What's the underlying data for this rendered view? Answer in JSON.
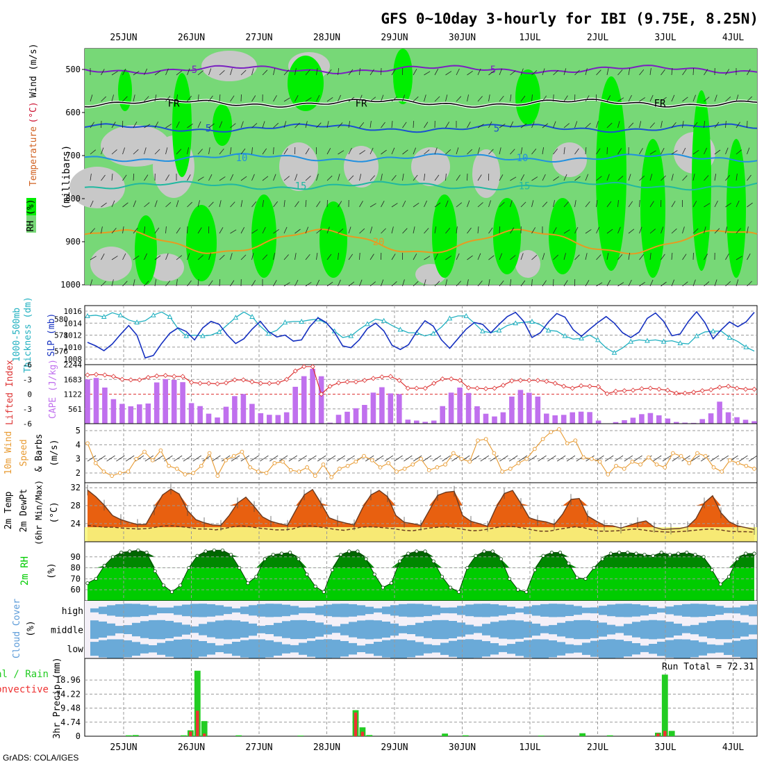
{
  "title": "GFS 0~10day 3-hourly for IBI (9.75E, 8.25N)",
  "credit": "GrADS: COLA/IGES",
  "date_ticks": [
    "25JUN",
    "26JUN",
    "27JUN",
    "28JUN",
    "29JUN",
    "30JUN",
    "1JUL",
    "2JUL",
    "3JUL",
    "4JUL"
  ],
  "colors": {
    "rh_dark": "#00ee00",
    "rh_mid": "#77d877",
    "rh_grey": "#c8c8c8",
    "slp": "#1530c0",
    "thick": "#20b0c0",
    "lifted": "#dd3333",
    "cape": "#c070ee",
    "wind": "#e89a30",
    "temp_dark": "#e86010",
    "temp_light": "#f4a840",
    "dewpt_fill": "#f8f880",
    "rh2_dark": "#008800",
    "rh2_light": "#00cc00",
    "cloud": "#6aaad8",
    "cloud_bg": "#f4f0f8",
    "precip_total": "#22cc22",
    "precip_conv": "#ee3333"
  },
  "chart_data": [
    {
      "type": "heatmap",
      "panel": "upper-air",
      "ylabel": "(millibars)",
      "legend_labels": [
        "RH (%)",
        "Temperature",
        "(°C)",
        "Wind",
        "(m/s)"
      ],
      "y_ticks": [
        500,
        600,
        700,
        800,
        900,
        1000
      ],
      "contours": [
        {
          "label": "5",
          "text_labels": [
            "5",
            "5"
          ],
          "color": "#7a20c0",
          "level_mb": 500
        },
        {
          "label": "FR",
          "text_labels": [
            "FR",
            "FR",
            "FR"
          ],
          "color": "#000000",
          "level_mb": 578
        },
        {
          "label": "5",
          "text_labels": [
            "5",
            "5"
          ],
          "color": "#1a50d0",
          "level_mb": 636
        },
        {
          "label": "10",
          "text_labels": [
            "10",
            "10"
          ],
          "color": "#2090e0",
          "level_mb": 705
        },
        {
          "label": "15",
          "text_labels": [
            "15",
            "15"
          ],
          "color": "#20b8a0",
          "level_mb": 770
        },
        {
          "label": "20",
          "text_labels": [
            "20"
          ],
          "color": "#e89a20",
          "level_mb": 900
        }
      ]
    },
    {
      "type": "line",
      "panel": "slp-thickness",
      "ylabel_left": [
        "1000-500mb",
        "Thickness (dm)"
      ],
      "ylabel_right": "SLP (mb)",
      "yticks_left": [
        576,
        578,
        580
      ],
      "yticks_right": [
        1008,
        1010,
        1012,
        1014,
        1016
      ],
      "series": [
        {
          "name": "SLP (mb)",
          "values": [
            1010.8,
            1010.2,
            1009.4,
            1010.5,
            1012.1,
            1013.6,
            1012.0,
            1008.2,
            1008.6,
            1010.6,
            1012.3,
            1013.2,
            1012.6,
            1011.2,
            1013.2,
            1014.3,
            1013.8,
            1012.0,
            1010.6,
            1011.4,
            1013.0,
            1014.3,
            1012.6,
            1011.7,
            1012.0,
            1011.0,
            1011.2,
            1013.4,
            1014.9,
            1014.1,
            1012.5,
            1010.2,
            1009.9,
            1011.2,
            1013.1,
            1014.0,
            1012.7,
            1010.3,
            1009.6,
            1010.4,
            1012.6,
            1014.4,
            1013.5,
            1011.2,
            1009.8,
            1011.4,
            1013.0,
            1014.1,
            1013.8,
            1012.4,
            1013.8,
            1015.1,
            1015.8,
            1014.3,
            1011.6,
            1012.4,
            1014.2,
            1015.6,
            1015.0,
            1012.9,
            1011.8,
            1013.0,
            1014.1,
            1015.1,
            1014.0,
            1012.4,
            1011.6,
            1012.5,
            1014.8,
            1015.7,
            1014.3,
            1011.9,
            1012.2,
            1014.3,
            1015.9,
            1014.1,
            1011.4,
            1012.9,
            1014.2,
            1013.4,
            1014.2,
            1015.8
          ]
        },
        {
          "name": "Thickness (dm)",
          "values": [
            580.4,
            580.5,
            580.3,
            580.8,
            580.5,
            579.9,
            579.6,
            579.8,
            580.5,
            580.9,
            580.3,
            578.8,
            577.9,
            578.0,
            577.9,
            578.0,
            578.4,
            579.3,
            580.2,
            580.9,
            580.3,
            579.1,
            578.2,
            578.6,
            579.6,
            579.7,
            579.7,
            579.9,
            580.0,
            579.5,
            578.5,
            577.7,
            577.9,
            578.7,
            579.4,
            580.0,
            579.8,
            579.2,
            578.7,
            578.3,
            578.3,
            577.9,
            578.2,
            579.0,
            580.1,
            580.4,
            580.4,
            579.5,
            578.5,
            578.3,
            578.6,
            579.2,
            579.5,
            579.6,
            579.7,
            579.3,
            578.6,
            578.5,
            577.9,
            577.5,
            577.6,
            578.0,
            577.4,
            576.4,
            575.8,
            576.4,
            577.2,
            577.4,
            577.3,
            577.4,
            577.2,
            577.3,
            577.0,
            576.9,
            577.9,
            578.4,
            578.5,
            578.5,
            577.7,
            577.2,
            576.5,
            576.0
          ]
        }
      ]
    },
    {
      "type": "bar",
      "panel": "lifted-cape",
      "ylabel_left": "Lifted Index",
      "ylabel_right": "CAPE (J/kg)",
      "yticks_left": [
        -6,
        -3,
        0,
        3,
        6
      ],
      "yticks_right": [
        561,
        1122,
        1683,
        2244
      ],
      "series": [
        {
          "name": "CAPE (J/kg)",
          "values": [
            1683,
            1737,
            1374,
            932,
            752,
            661,
            734,
            765,
            1569,
            1693,
            1667,
            1579,
            781,
            669,
            379,
            234,
            645,
            1048,
            1126,
            753,
            398,
            337,
            329,
            434,
            1403,
            1807,
            2085,
            1804,
            36,
            339,
            455,
            586,
            712,
            1179,
            1386,
            1151,
            1125,
            153,
            118,
            72,
            118,
            668,
            1179,
            1374,
            1166,
            663,
            378,
            274,
            432,
            1029,
            1284,
            1176,
            1029,
            384,
            317,
            335,
            433,
            456,
            440,
            120,
            5,
            60,
            132,
            227,
            361,
            405,
            318,
            196,
            65,
            39,
            28,
            175,
            394,
            838,
            432,
            246,
            149,
            95
          ],
          "color": "#c070ee"
        },
        {
          "name": "Lifted Index",
          "values": [
            -3.9,
            -4.0,
            -3.9,
            -3.6,
            -3.0,
            -2.9,
            -2.9,
            -3.4,
            -3.7,
            -3.8,
            -3.6,
            -3.6,
            -2.4,
            -2.2,
            -2.2,
            -2.1,
            -2.3,
            -2.9,
            -2.9,
            -2.5,
            -2.2,
            -2.2,
            -2.3,
            -3.0,
            -4.7,
            -5.6,
            -5.6,
            0.0,
            -1.6,
            -2.3,
            -2.5,
            -2.5,
            -2.8,
            -3.2,
            -3.5,
            -3.6,
            -2.8,
            -1.2,
            -1.2,
            -1.2,
            -2.2,
            -3.1,
            -3.1,
            -2.8,
            -1.3,
            -1.2,
            -1.1,
            -1.2,
            -1.8,
            -2.7,
            -2.8,
            -2.8,
            -2.8,
            -2.6,
            -2.2,
            -1.6,
            -1.2,
            -1.7,
            -1.6,
            -1.5,
            -0.1,
            -0.6,
            -0.7,
            -0.8,
            -1.1,
            -1.2,
            -1.0,
            -0.8,
            -0.2,
            -0.2,
            -0.4,
            -0.7,
            -0.9,
            -1.4,
            -1.6,
            -1.2,
            -1.0,
            -1.0
          ]
        }
      ]
    },
    {
      "type": "line",
      "panel": "wind10m",
      "ylabel": [
        "10m Wind",
        "Speed",
        "& Barbs",
        "(m/s)"
      ],
      "yticks": [
        2,
        3,
        4,
        5
      ],
      "series": [
        {
          "name": "Speed",
          "values": [
            4.1,
            2.7,
            2.1,
            1.8,
            2.0,
            2.1,
            3.0,
            3.5,
            2.9,
            3.6,
            2.5,
            2.3,
            1.9,
            2.0,
            2.5,
            3.4,
            1.8,
            2.9,
            3.2,
            3.5,
            2.4,
            2.1,
            2.0,
            2.7,
            2.8,
            2.2,
            2.1,
            2.4,
            1.8,
            2.6,
            1.7,
            2.3,
            2.5,
            2.8,
            3.2,
            2.9,
            2.4,
            2.7,
            2.1,
            2.3,
            2.6,
            3.0,
            2.2,
            2.4,
            2.6,
            3.4,
            3.0,
            2.8,
            4.3,
            4.4,
            3.4,
            2.1,
            2.3,
            2.7,
            3.0,
            3.7,
            4.4,
            4.9,
            5.1,
            4.1,
            4.3,
            3.1,
            3.0,
            2.8,
            1.9,
            2.5,
            2.3,
            2.8,
            2.6,
            3.1,
            2.6,
            2.4,
            3.4,
            3.2,
            2.7,
            3.4,
            3.2,
            2.4,
            2.1,
            2.9,
            2.7,
            2.5,
            2.3
          ]
        }
      ]
    },
    {
      "type": "area",
      "panel": "temp-dewpt",
      "ylabel": [
        "2m Temp",
        "2m DewPt",
        "(6hr Min/Max)",
        "(°C)"
      ],
      "yticks": [
        24,
        28,
        32
      ],
      "series": [
        {
          "name": "2m Temp",
          "values": [
            31.5,
            30.0,
            28.1,
            25.8,
            24.9,
            24.3,
            23.8,
            23.8,
            27.1,
            30.4,
            31.7,
            30.6,
            26.9,
            24.9,
            24.2,
            23.7,
            23.6,
            25.8,
            28.6,
            29.9,
            27.8,
            25.5,
            24.5,
            24.0,
            23.6,
            27.0,
            30.4,
            31.6,
            28.6,
            25.3,
            24.6,
            24.1,
            23.7,
            27.5,
            30.4,
            31.4,
            30.0,
            25.8,
            24.3,
            24.0,
            23.6,
            26.9,
            30.3,
            31.0,
            31.2,
            25.8,
            24.5,
            24.0,
            23.4,
            27.5,
            30.7,
            31.4,
            28.5,
            25.3,
            24.7,
            24.4,
            23.8,
            26.1,
            29.4,
            29.6,
            25.7,
            24.6,
            23.6,
            23.5,
            23.0,
            23.6,
            24.2,
            24.6,
            23.2,
            22.7,
            22.8,
            22.9,
            23.3,
            25.1,
            28.6,
            30.2,
            26.4,
            24.4,
            23.5,
            23.1,
            22.7
          ]
        },
        {
          "name": "2m DewPt",
          "values": [
            23.6,
            23.4,
            23.2,
            23.2,
            23.0,
            22.9,
            22.8,
            22.9,
            23.2,
            23.5,
            23.5,
            23.3,
            23.1,
            22.8,
            22.8,
            22.6,
            22.9,
            23.3,
            23.5,
            23.3,
            23.0,
            22.8,
            22.6,
            22.6,
            22.8,
            23.4,
            23.5,
            23.3,
            23.0,
            22.7,
            22.5,
            22.8,
            23.2,
            23.3,
            23.2,
            23.0,
            22.8,
            22.5,
            22.4,
            22.7,
            23.0,
            23.2,
            23.3,
            23.0,
            22.7,
            22.4,
            22.5,
            22.8,
            23.2,
            23.4,
            23.3,
            23.0,
            22.6,
            22.3,
            22.3,
            22.7,
            23.0,
            23.3,
            23.1,
            22.6,
            22.3,
            22.3,
            22.4,
            22.6,
            22.8,
            22.6,
            22.3,
            22.2,
            22.1,
            22.2,
            22.3,
            22.5,
            22.7,
            22.8,
            22.6,
            22.3,
            22.2,
            22.2,
            22.1
          ]
        }
      ]
    },
    {
      "type": "area",
      "panel": "rh2m",
      "ylabel": [
        "2m RH",
        "(%)"
      ],
      "yticks": [
        60,
        70,
        80,
        90
      ],
      "series": [
        {
          "name": "2m RH",
          "values": [
            66,
            70,
            82,
            90,
            94,
            95,
            96,
            94,
            77,
            64,
            58,
            64,
            80,
            91,
            95,
            96,
            96,
            92,
            80,
            66,
            72,
            88,
            92,
            93,
            94,
            88,
            74,
            63,
            58,
            78,
            92,
            95,
            95,
            88,
            74,
            62,
            66,
            86,
            93,
            95,
            95,
            86,
            72,
            62,
            58,
            80,
            91,
            95,
            95,
            88,
            70,
            60,
            58,
            78,
            91,
            94,
            94,
            84,
            71,
            70,
            80,
            88,
            93,
            94,
            94,
            93,
            92,
            91,
            94,
            92,
            93,
            94,
            92,
            90,
            78,
            65,
            72,
            88,
            93,
            93
          ]
        }
      ]
    },
    {
      "type": "area",
      "panel": "cloud-cover",
      "ylabel": [
        "Cloud Cover",
        "(%)"
      ],
      "rows": [
        "high",
        "middle",
        "low"
      ]
    },
    {
      "type": "bar",
      "panel": "precip",
      "ylabel": "3hr Precip (mm)",
      "legend_labels": [
        "Total / Rain",
        "Convective"
      ],
      "run_total_label": "Run Total = 72.31",
      "yticks": [
        0,
        4.74,
        9.48,
        14.22,
        18.96
      ],
      "ytick_labels": [
        "0",
        "4.74",
        "9.48",
        "14.22",
        "18.96"
      ],
      "series": [
        {
          "name": "Total / Rain",
          "values": [
            0,
            0,
            0,
            0,
            0,
            0,
            0.3,
            0.4,
            0,
            0,
            0,
            0,
            0,
            0,
            0.3,
            2.0,
            22.1,
            5.1,
            0,
            0,
            0,
            0,
            0.3,
            0,
            0,
            0,
            0,
            0,
            0,
            0,
            0,
            0.2,
            0,
            0,
            0,
            0,
            0,
            0,
            0,
            8.8,
            3.0,
            0.4,
            0,
            0,
            0,
            0,
            0,
            0,
            0,
            0,
            0,
            0,
            0.9,
            0,
            0,
            0.3,
            0,
            0,
            0,
            0,
            0,
            0,
            0,
            0,
            0,
            0,
            0.2,
            0,
            0,
            0,
            0,
            0,
            1.0,
            0,
            0,
            0,
            0.3,
            0,
            0,
            0,
            0,
            0,
            0,
            1.2,
            20.8,
            1.8,
            0,
            0,
            0,
            0,
            0,
            0,
            0,
            0,
            0,
            0,
            0,
            0
          ]
        },
        {
          "name": "Convective",
          "values": [
            0,
            0,
            0,
            0,
            0,
            0,
            0,
            0,
            0,
            0,
            0,
            0,
            0,
            0,
            0,
            1.6,
            8.6,
            0.9,
            0,
            0,
            0,
            0,
            0,
            0,
            0,
            0,
            0,
            0,
            0,
            0,
            0,
            0,
            0,
            0,
            0,
            0,
            0,
            0,
            0,
            8.0,
            1.5,
            0,
            0,
            0,
            0,
            0,
            0,
            0,
            0,
            0,
            0,
            0,
            0,
            0,
            0,
            0,
            0,
            0,
            0,
            0,
            0,
            0,
            0,
            0,
            0,
            0,
            0,
            0,
            0,
            0,
            0,
            0,
            0,
            0,
            0,
            0,
            0,
            0,
            0,
            0,
            0,
            0,
            0,
            0.9,
            1.8,
            0,
            0,
            0,
            0,
            0,
            0,
            0,
            0,
            0,
            0,
            0,
            0,
            0
          ]
        }
      ]
    }
  ]
}
